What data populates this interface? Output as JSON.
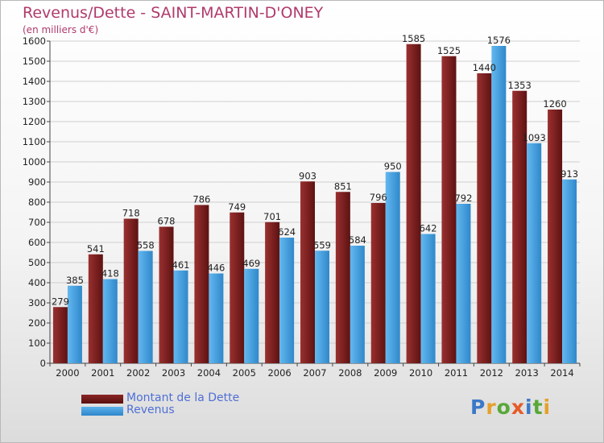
{
  "title": "Revenus/Dette - SAINT-MARTIN-D'ONEY",
  "subtitle": "(en milliers d'€)",
  "chart_data": {
    "type": "bar",
    "categories": [
      "2000",
      "2001",
      "2002",
      "2003",
      "2004",
      "2005",
      "2006",
      "2007",
      "2008",
      "2009",
      "2010",
      "2011",
      "2012",
      "2013",
      "2014"
    ],
    "series": [
      {
        "name": "Montant de la Dette",
        "color": "#7a1c1c",
        "values": [
          279,
          541,
          718,
          678,
          786,
          749,
          701,
          903,
          851,
          796,
          1585,
          1525,
          1440,
          1353,
          1260
        ]
      },
      {
        "name": "Revenus",
        "color": "#4aa3e2",
        "values": [
          385,
          418,
          558,
          461,
          446,
          469,
          624,
          559,
          584,
          950,
          642,
          792,
          1576,
          1093,
          913
        ]
      }
    ],
    "data_labels": [
      [
        "279",
        "541",
        "718",
        "678",
        "786",
        "749",
        "701",
        "903",
        "851",
        "796",
        "1585",
        "1525",
        "1440",
        "1353",
        "1260"
      ],
      [
        "385",
        "418",
        "558",
        "461",
        "446",
        "469",
        "624",
        "559",
        "584",
        "950",
        "642",
        "792",
        "1576",
        "1093",
        "913"
      ]
    ],
    "ylim": [
      0,
      1600
    ],
    "yticks": [
      "0",
      "100",
      "200",
      "300",
      "400",
      "500",
      "600",
      "700",
      "800",
      "900",
      "1000",
      "1100",
      "1200",
      "1300",
      "1400",
      "1500",
      "1600"
    ],
    "grid": true,
    "legend_position": "bottom-left"
  },
  "legend": {
    "debt_label": "Montant de la Dette",
    "revenue_label": "Revenus"
  },
  "logo": {
    "letters": [
      "P",
      "r",
      "o",
      "x",
      "i",
      "t",
      "i"
    ],
    "colors": [
      "#3c78c8",
      "#e6a02a",
      "#58a838",
      "#e65a28",
      "#3c78c8",
      "#58a838",
      "#e6a02a"
    ]
  }
}
